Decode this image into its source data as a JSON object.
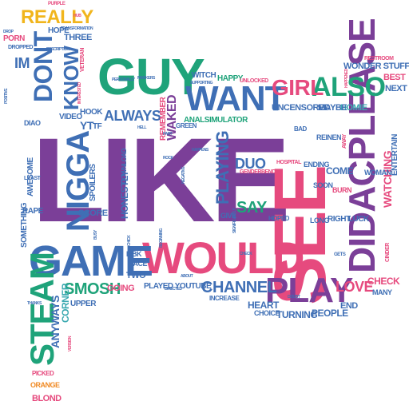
{
  "palette": {
    "purple": "#7b3f98",
    "pink": "#e64a7e",
    "blue": "#3f6fb5",
    "green": "#1fa37a",
    "yellow": "#f1b51c",
    "teal": "#3aa9b0",
    "brown": "#8d6e63",
    "orange": "#f08a24",
    "gray": "#666666"
  },
  "words": [
    {
      "text": "LIKE",
      "color": "purple"
    },
    {
      "text": "SEE",
      "color": "pink"
    },
    {
      "text": "GUY",
      "color": "green"
    },
    {
      "text": "WOULD",
      "color": "pink"
    },
    {
      "text": "GAME",
      "color": "blue"
    },
    {
      "text": "WANT",
      "color": "blue"
    },
    {
      "text": "DIDACPLEASE",
      "color": "purple"
    },
    {
      "text": "NIGGA",
      "color": "blue"
    },
    {
      "text": "STEAM",
      "color": "green"
    },
    {
      "text": "PLAY",
      "color": "purple"
    },
    {
      "text": "ALSO",
      "color": "green"
    },
    {
      "text": "GIRL",
      "color": "pink"
    },
    {
      "text": "DONT",
      "color": "blue"
    },
    {
      "text": "KNOW",
      "color": "blue"
    },
    {
      "text": "REALLY",
      "color": "yellow"
    },
    {
      "text": "SMOSH",
      "color": "green"
    },
    {
      "text": "CHANNEL",
      "color": "blue"
    },
    {
      "text": "ALWAYS",
      "color": "blue"
    },
    {
      "text": "PLAYING",
      "color": "blue"
    },
    {
      "text": "DUO",
      "color": "blue"
    },
    {
      "text": "SAY",
      "color": "green"
    },
    {
      "text": "LOVE",
      "color": "pink"
    },
    {
      "text": "CHECK",
      "color": "pink"
    },
    {
      "text": "WATCHING",
      "color": "pink"
    },
    {
      "text": "ANYWAYS",
      "color": "blue"
    },
    {
      "text": "CORNER",
      "color": "teal"
    },
    {
      "text": "TURNING",
      "color": "blue"
    },
    {
      "text": "PEOPLE",
      "color": "blue"
    },
    {
      "text": "HEART",
      "color": "blue"
    },
    {
      "text": "HONESTLY",
      "color": "blue"
    },
    {
      "text": "WAKED",
      "color": "purple"
    },
    {
      "text": "REMEMBER",
      "color": "pink"
    },
    {
      "text": "HOMIE",
      "color": "teal"
    },
    {
      "text": "MAYBE",
      "color": "blue"
    },
    {
      "text": "UNCENSORED",
      "color": "blue"
    },
    {
      "text": "WONDER STUFF",
      "color": "blue"
    },
    {
      "text": "BEST",
      "color": "pink"
    },
    {
      "text": "NEXT",
      "color": "blue"
    },
    {
      "text": "HAPPY",
      "color": "green"
    },
    {
      "text": "WITCH",
      "color": "blue"
    },
    {
      "text": "ANALSIMULATOR",
      "color": "green"
    },
    {
      "text": "UNLOCKED",
      "color": "pink"
    },
    {
      "text": "GREEN",
      "color": "blue"
    },
    {
      "text": "IM",
      "color": "blue"
    },
    {
      "text": "THREE",
      "color": "blue"
    },
    {
      "text": "HOPE",
      "color": "blue"
    },
    {
      "text": "PORN",
      "color": "pink"
    },
    {
      "text": "YT",
      "color": "blue"
    },
    {
      "text": "VIDEO",
      "color": "blue"
    },
    {
      "text": "HOOK",
      "color": "blue"
    },
    {
      "text": "TF",
      "color": "blue"
    },
    {
      "text": "SCORE",
      "color": "blue"
    },
    {
      "text": "ENDING",
      "color": "blue"
    },
    {
      "text": "COME",
      "color": "blue"
    },
    {
      "text": "REINEN",
      "color": "blue"
    },
    {
      "text": "SOON",
      "color": "blue"
    },
    {
      "text": "BURN",
      "color": "pink"
    },
    {
      "text": "WOMAN",
      "color": "blue"
    },
    {
      "text": "ENTERTAIN",
      "color": "blue"
    },
    {
      "text": "LUCK",
      "color": "blue"
    },
    {
      "text": "RIGHT",
      "color": "blue"
    },
    {
      "text": "LONG",
      "color": "blue"
    },
    {
      "text": "HOPED",
      "color": "blue"
    },
    {
      "text": "GIVE",
      "color": "blue"
    },
    {
      "text": "PLAYED YOUTUBE",
      "color": "blue"
    },
    {
      "text": "GOING",
      "color": "pink"
    },
    {
      "text": "TWO",
      "color": "blue"
    },
    {
      "text": "FACE",
      "color": "blue"
    },
    {
      "text": "LIBK",
      "color": "blue"
    },
    {
      "text": "END",
      "color": "blue"
    },
    {
      "text": "MANY",
      "color": "blue"
    },
    {
      "text": "CHOICE",
      "color": "blue"
    },
    {
      "text": "UPPER",
      "color": "blue"
    },
    {
      "text": "BLOND",
      "color": "pink"
    },
    {
      "text": "ORANGE",
      "color": "orange"
    },
    {
      "text": "PICKED",
      "color": "pink"
    },
    {
      "text": "SOMETHING",
      "color": "blue"
    },
    {
      "text": "AWESOME",
      "color": "blue"
    },
    {
      "text": "RAPE",
      "color": "blue"
    },
    {
      "text": "SPOILERS",
      "color": "blue"
    },
    {
      "text": "DIAO",
      "color": "blue"
    },
    {
      "text": "LEAST",
      "color": "blue"
    },
    {
      "text": "INCREASE",
      "color": "blue"
    },
    {
      "text": "DROPPED",
      "color": "blue"
    },
    {
      "text": "DESCRIPTION",
      "color": "blue"
    },
    {
      "text": "RESTROOM",
      "color": "pink"
    },
    {
      "text": "VETERAN",
      "color": "pink"
    },
    {
      "text": "DOWNLOAD",
      "color": "blue"
    },
    {
      "text": "BAD",
      "color": "blue"
    },
    {
      "text": "CINDER",
      "color": "pink"
    },
    {
      "text": "LONGER",
      "color": "pink"
    },
    {
      "text": "HOSPITAL",
      "color": "pink"
    },
    {
      "text": "GENDERBEND",
      "color": "pink"
    },
    {
      "text": "SIGNIFICANTLY",
      "color": "blue"
    },
    {
      "text": "HAPPENS",
      "color": "blue"
    },
    {
      "text": "PURPLE",
      "color": "pink"
    },
    {
      "text": "HUB",
      "color": "pink"
    },
    {
      "text": "DROP",
      "color": "blue"
    },
    {
      "text": "PART",
      "color": "blue"
    },
    {
      "text": "NEGATIVE",
      "color": "blue"
    },
    {
      "text": "ABOUT",
      "color": "blue"
    },
    {
      "text": "AWAY",
      "color": "pink"
    },
    {
      "text": "GETS",
      "color": "blue"
    },
    {
      "text": "SUPPORTING",
      "color": "blue"
    },
    {
      "text": "TRANSFORMATION",
      "color": "blue"
    },
    {
      "text": "DIRECTED",
      "color": "blue"
    },
    {
      "text": "HELL",
      "color": "blue"
    },
    {
      "text": "DOUBT",
      "color": "blue"
    },
    {
      "text": "CHECK",
      "color": "blue"
    },
    {
      "text": "PERSONALLY",
      "color": "blue"
    },
    {
      "text": "MARKERS",
      "color": "blue"
    },
    {
      "text": "INTERESTED",
      "color": "pink"
    },
    {
      "text": "POSITIVE",
      "color": "blue"
    },
    {
      "text": "BEGINNING",
      "color": "blue"
    },
    {
      "text": "BUSY",
      "color": "blue"
    },
    {
      "text": "THANKS",
      "color": "blue"
    },
    {
      "text": "VERSION",
      "color": "pink"
    },
    {
      "text": "HAPPENED",
      "color": "pink"
    },
    {
      "text": "ROCK",
      "color": "blue"
    },
    {
      "text": "CHICK",
      "color": "blue"
    }
  ]
}
